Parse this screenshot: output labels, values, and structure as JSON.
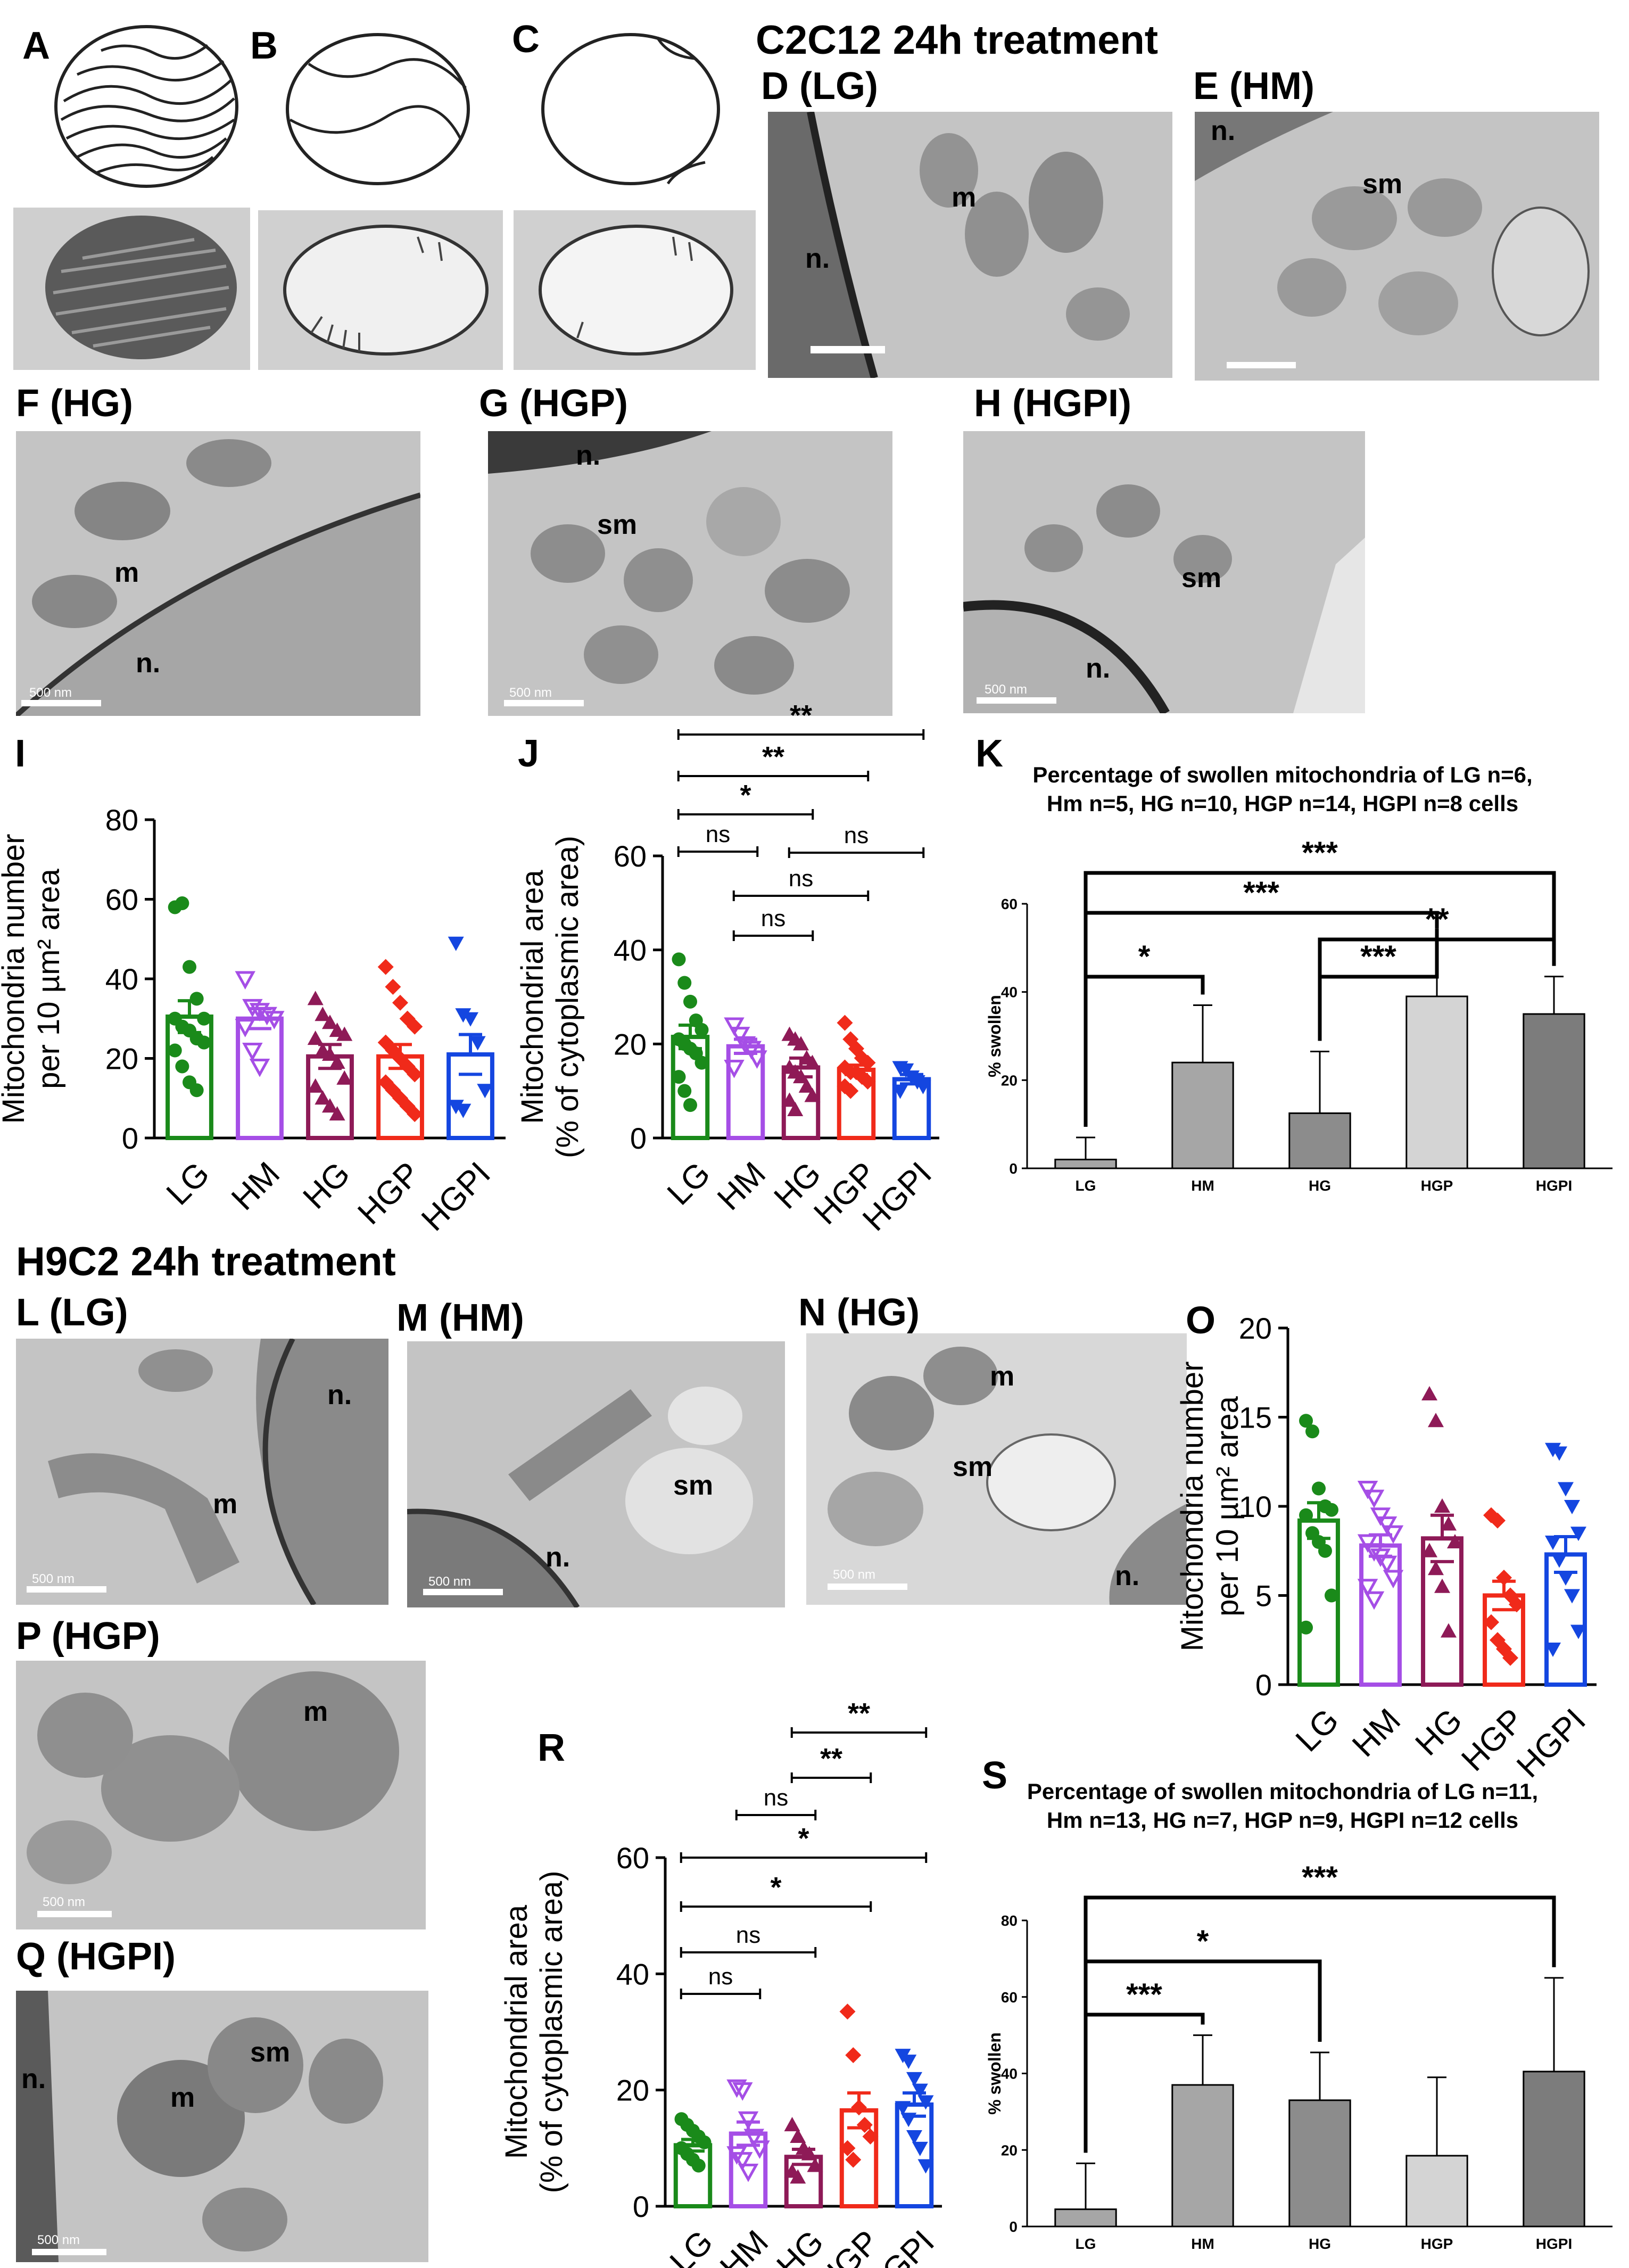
{
  "headers": {
    "c2c12": "C2C12 24h treatment",
    "h9c2": "H9C2 24h treatment"
  },
  "panels": {
    "A": "A",
    "B": "B",
    "C": "C",
    "D": "D (LG)",
    "E": "E (HM)",
    "F": "F (HG)",
    "G": "G (HGP)",
    "H": "H (HGPI)",
    "I": "I",
    "J": "J",
    "K": "K",
    "L": "L (LG)",
    "M": "M (HM)",
    "N": "N (HG)",
    "O": "O",
    "P": "P (HGP)",
    "Q": "Q (HGPI)",
    "R": "R",
    "S": "S"
  },
  "micrographs": {
    "D": {
      "labels": [
        "m",
        "n."
      ]
    },
    "E": {
      "labels": [
        "n.",
        "sm"
      ]
    },
    "F": {
      "labels": [
        "m",
        "n."
      ],
      "scale": "500 nm"
    },
    "G": {
      "labels": [
        "n.",
        "sm"
      ],
      "scale": "500 nm"
    },
    "H": {
      "labels": [
        "sm",
        "n."
      ],
      "scale": "500 nm"
    },
    "L": {
      "labels": [
        "n.",
        "m"
      ],
      "scale": "500 nm"
    },
    "M": {
      "labels": [
        "sm",
        "n."
      ],
      "scale": "500 nm"
    },
    "N": {
      "labels": [
        "m",
        "sm",
        "n."
      ],
      "scale": "500 nm"
    },
    "P": {
      "labels": [
        "m"
      ],
      "scale": "500 nm"
    },
    "Q": {
      "labels": [
        "sm",
        "m",
        "n."
      ],
      "scale": "500 nm"
    }
  },
  "colors": {
    "LG": "#1a8a1a",
    "HM": "#a54ee6",
    "HG": "#8e1a57",
    "HGP": "#f02a1a",
    "HGPI": "#1446e0",
    "K_LG": "#a6a6a6",
    "K_HM": "#a6a6a6",
    "K_HG": "#8c8c8c",
    "K_HGP": "#d4d4d4",
    "K_HGPI": "#7c7c7c"
  },
  "chart_data": [
    {
      "id": "I",
      "type": "bar",
      "categories": [
        "LG",
        "HM",
        "HG",
        "HGP",
        "HGPI"
      ],
      "values": [
        30.5,
        30,
        20.5,
        20.5,
        21
      ],
      "errors": [
        4,
        2.5,
        3,
        3,
        5
      ],
      "markers": [
        "circle",
        "triangle-down-open",
        "triangle-up",
        "diamond",
        "triangle-down"
      ],
      "points": [
        [
          58,
          59,
          43,
          35,
          30,
          30,
          28,
          27,
          25,
          24,
          22,
          18,
          14,
          12
        ],
        [
          40,
          33,
          32,
          31,
          30,
          28,
          22,
          18
        ],
        [
          35,
          31,
          29,
          27,
          26,
          25,
          22,
          21,
          19,
          15,
          13,
          10,
          8,
          6
        ],
        [
          43,
          38,
          34,
          30,
          28,
          24,
          22,
          20,
          18,
          16,
          14,
          12,
          10,
          8,
          6
        ],
        [
          49,
          31,
          30,
          24,
          12,
          8,
          7
        ]
      ],
      "ylabel": "Mitochondria number per 10 µm² area",
      "ylabel_lines": [
        "Mitochondria number",
        "per 10 µm² area"
      ],
      "ylim": [
        0,
        80
      ],
      "yticks": [
        "0",
        "20",
        "40",
        "60",
        "80"
      ]
    },
    {
      "id": "J",
      "type": "bar",
      "categories": [
        "LG",
        "HM",
        "HG",
        "HGP",
        "HGPI"
      ],
      "values": [
        21.5,
        19.5,
        15,
        14.5,
        12.5
      ],
      "errors": [
        2.5,
        1.5,
        2,
        1,
        1
      ],
      "markers": [
        "circle",
        "triangle-down-open",
        "triangle-up",
        "diamond",
        "triangle-down"
      ],
      "points": [
        [
          38,
          33,
          29,
          25,
          23,
          21,
          20,
          19,
          18,
          16,
          13,
          10,
          7
        ],
        [
          24,
          22,
          20,
          19,
          17,
          15
        ],
        [
          22,
          21,
          20,
          17,
          16,
          15,
          14,
          13,
          11,
          9,
          8,
          6
        ],
        [
          24.5,
          21,
          19,
          17,
          16,
          15,
          14,
          14,
          13,
          12,
          11,
          10
        ],
        [
          15,
          14.5,
          13,
          12,
          11,
          10
        ]
      ],
      "ylabel": "Mitochondrial area (% of cytoplasmic area)",
      "ylabel_lines": [
        "Mitochondrial area",
        "(% of cytoplasmic area)"
      ],
      "ylim": [
        0,
        60
      ],
      "yticks": [
        "0",
        "20",
        "40",
        "60"
      ],
      "comparisons": [
        {
          "from": "LG",
          "to": "HGPI",
          "label": "**"
        },
        {
          "from": "LG",
          "to": "HGP",
          "label": "**"
        },
        {
          "from": "LG",
          "to": "HG",
          "label": "*"
        },
        {
          "from": "LG",
          "to": "HM",
          "label": "ns"
        },
        {
          "from": "HG",
          "to": "HGPI",
          "label": "ns"
        },
        {
          "from": "HM",
          "to": "HGP",
          "label": "ns"
        },
        {
          "from": "HM",
          "to": "HG",
          "label": "ns"
        }
      ]
    },
    {
      "id": "K",
      "type": "bar",
      "title": "Percentage of swollen mitochondria of LG n=6, Hm n=5, HG n=10, HGP n=14, HGPI n=8 cells",
      "title_lines": [
        "Percentage of swollen mitochondria of LG n=6,",
        "Hm n=5, HG n=10, HGP n=14, HGPI n=8 cells"
      ],
      "categories": [
        "LG",
        "HM",
        "HG",
        "HGP",
        "HGPI"
      ],
      "values": [
        2,
        24,
        12.5,
        39,
        35
      ],
      "errors": [
        5,
        13,
        14,
        13,
        8.5
      ],
      "ylabel": "% swollen",
      "ylim": [
        0,
        60
      ],
      "yticks": [
        "0",
        "20",
        "40",
        "60"
      ],
      "comparisons": [
        {
          "from": "LG",
          "to": "HGPI",
          "label": "***"
        },
        {
          "from": "LG",
          "to": "HGP",
          "label": "***"
        },
        {
          "from": "HG",
          "to": "HGPI",
          "label": "**"
        },
        {
          "from": "HG",
          "to": "HGP",
          "label": "***"
        },
        {
          "from": "LG",
          "to": "HM",
          "label": "*"
        }
      ]
    },
    {
      "id": "O",
      "type": "bar",
      "categories": [
        "LG",
        "HM",
        "HG",
        "HGP",
        "HGPI"
      ],
      "values": [
        9.2,
        7.8,
        8.2,
        5,
        7.3
      ],
      "errors": [
        1,
        0.6,
        1.3,
        0.8,
        1
      ],
      "markers": [
        "circle",
        "triangle-down-open",
        "triangle-up",
        "diamond",
        "triangle-down"
      ],
      "points": [
        [
          14.8,
          14.2,
          11,
          10,
          9.8,
          9.5,
          8.5,
          8,
          7.5,
          5,
          3.2
        ],
        [
          11,
          10.5,
          9.5,
          9,
          8.5,
          8,
          7.5,
          7.2,
          6.8,
          6,
          5.5,
          4.8
        ],
        [
          16.3,
          14.8,
          10,
          9,
          8,
          7.5,
          6.5,
          5.5,
          3
        ],
        [
          9.5,
          9.2,
          6,
          5,
          4.5,
          3.5,
          2.5,
          2,
          1.5
        ],
        [
          13.2,
          13,
          11,
          10,
          8.5,
          8,
          7,
          6,
          5,
          3,
          2
        ]
      ],
      "ylabel": "Mitochondria number per 10 µm² area",
      "ylabel_lines": [
        "Mitochondria number",
        "per 10 µm² area"
      ],
      "ylim": [
        0,
        20
      ],
      "yticks": [
        "0",
        "5",
        "10",
        "15",
        "20"
      ]
    },
    {
      "id": "R",
      "type": "bar",
      "categories": [
        "LG",
        "HM",
        "HG",
        "HGP",
        "HGPI"
      ],
      "values": [
        10.5,
        12.5,
        8.5,
        16.5,
        17.5
      ],
      "errors": [
        1,
        2,
        1.3,
        3,
        2
      ],
      "markers": [
        "circle",
        "triangle-down-open",
        "triangle-up",
        "diamond",
        "triangle-down"
      ],
      "points": [
        [
          15,
          14,
          13,
          12,
          11,
          10,
          9,
          8,
          7
        ],
        [
          20.5,
          20,
          15,
          12,
          10,
          9,
          8,
          6
        ],
        [
          14,
          12,
          10,
          9,
          7,
          6,
          5
        ],
        [
          33.5,
          26,
          17,
          14,
          12,
          10,
          8
        ],
        [
          26,
          25,
          22,
          20,
          18,
          17,
          15,
          12,
          10,
          7
        ]
      ],
      "ylabel": "Mitochondrial area (% of cytoplasmic area)",
      "ylabel_lines": [
        "Mitochondrial area",
        "(% of cytoplasmic area)"
      ],
      "ylim": [
        0,
        60
      ],
      "yticks": [
        "0",
        "20",
        "40",
        "60"
      ],
      "comparisons": [
        {
          "from": "HG",
          "to": "HGPI",
          "label": "**"
        },
        {
          "from": "HG",
          "to": "HGP",
          "label": "**"
        },
        {
          "from": "HM",
          "to": "HG",
          "label": "ns"
        },
        {
          "from": "LG",
          "to": "HGPI",
          "label": "*"
        },
        {
          "from": "LG",
          "to": "HGP",
          "label": "*"
        },
        {
          "from": "LG",
          "to": "HG",
          "label": "ns"
        },
        {
          "from": "LG",
          "to": "HM",
          "label": "ns"
        }
      ]
    },
    {
      "id": "S",
      "type": "bar",
      "title": "Percentage of swollen mitochondria of LG n=11, Hm n=13, HG n=7, HGP n=9, HGPI n=12 cells",
      "title_lines": [
        "Percentage of swollen mitochondria of LG n=11,",
        "Hm n=13, HG n=7, HGP n=9, HGPI n=12 cells"
      ],
      "categories": [
        "LG",
        "HM",
        "HG",
        "HGP",
        "HGPI"
      ],
      "values": [
        4.5,
        37,
        33,
        18.5,
        40.5
      ],
      "errors": [
        12,
        13,
        12.5,
        20.5,
        24.5
      ],
      "ylabel": "% swollen",
      "ylim": [
        0,
        80
      ],
      "yticks": [
        "0",
        "20",
        "40",
        "60",
        "80"
      ],
      "comparisons": [
        {
          "from": "LG",
          "to": "HGPI",
          "label": "***"
        },
        {
          "from": "LG",
          "to": "HG",
          "label": "*"
        },
        {
          "from": "LG",
          "to": "HM",
          "label": "***"
        }
      ]
    }
  ]
}
